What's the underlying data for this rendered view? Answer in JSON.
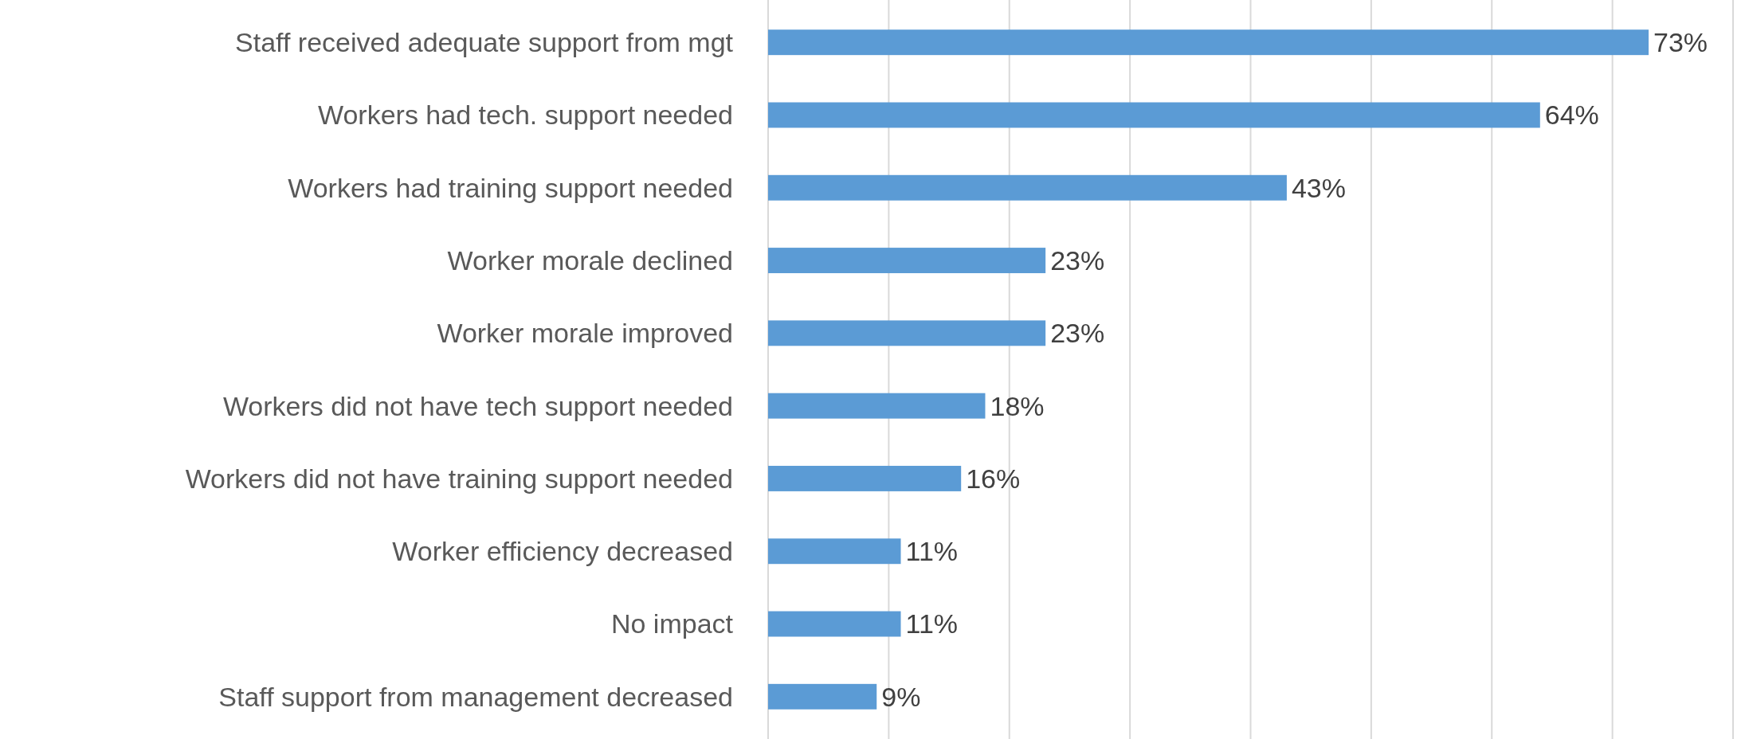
{
  "chart_data": {
    "type": "bar",
    "orientation": "horizontal",
    "categories": [
      "Staff received adequate support from mgt",
      "Workers had tech. support needed",
      "Workers had training support needed",
      "Worker morale declined",
      "Worker morale improved",
      "Workers did not have tech support needed",
      "Workers did not have training support needed",
      "Worker efficiency decreased",
      "No impact",
      "Staff support from management decreased"
    ],
    "values": [
      73,
      64,
      43,
      23,
      23,
      18,
      16,
      11,
      11,
      9
    ],
    "value_labels": [
      "73%",
      "64%",
      "43%",
      "23%",
      "23%",
      "18%",
      "16%",
      "11%",
      "11%",
      "9%"
    ],
    "color": "#5b9bd5",
    "xlim": [
      0,
      80
    ],
    "xticks": [
      {
        "value": 0,
        "label": null
      },
      {
        "value": 10,
        "label": null
      },
      {
        "value": 20,
        "label": null
      },
      {
        "value": 30,
        "label": null
      },
      {
        "value": 40,
        "label": null
      },
      {
        "value": 50,
        "label": null
      },
      {
        "value": 60,
        "label": null
      },
      {
        "value": 70,
        "label": null
      },
      {
        "value": 80,
        "label": null
      }
    ],
    "grid": "x",
    "tick_labels": "y"
  }
}
